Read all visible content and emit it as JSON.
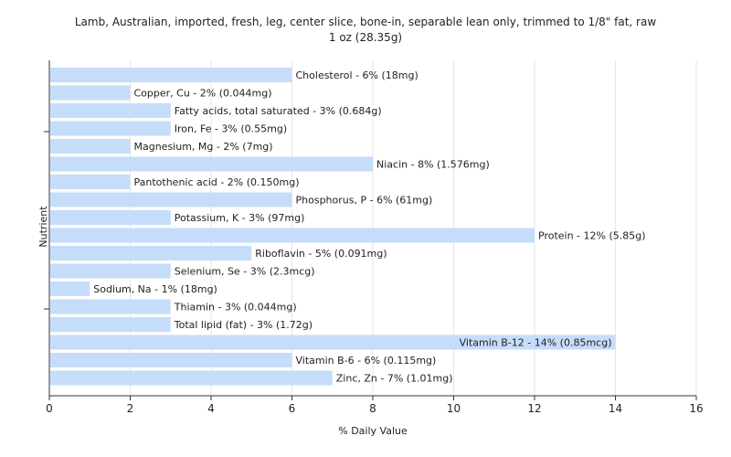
{
  "title_line_1": "Lamb, Australian, imported, fresh, leg, center slice, bone-in, separable lean only, trimmed to 1/8\" fat, raw",
  "title_line_2": "1 oz (28.35g)",
  "chart_data": {
    "type": "bar",
    "orientation": "horizontal",
    "title": "Lamb, Australian, imported, fresh, leg, center slice, bone-in, separable lean only, trimmed to 1/8\" fat, raw",
    "subtitle": "1 oz (28.35g)",
    "xlabel": "% Daily Value",
    "ylabel": "Nutrient",
    "xlim": [
      0,
      16
    ],
    "xticks": [
      0,
      2,
      4,
      6,
      8,
      10,
      12,
      14,
      16
    ],
    "grid": true,
    "bar_color": "#c6dcfb",
    "categories": [
      "Cholesterol",
      "Copper, Cu",
      "Fatty acids, total saturated",
      "Iron, Fe",
      "Magnesium, Mg",
      "Niacin",
      "Pantothenic acid",
      "Phosphorus, P",
      "Potassium, K",
      "Protein",
      "Riboflavin",
      "Selenium, Se",
      "Sodium, Na",
      "Thiamin",
      "Total lipid (fat)",
      "Vitamin B-12",
      "Vitamin B-6",
      "Zinc, Zn"
    ],
    "values": [
      6,
      2,
      3,
      3,
      2,
      8,
      2,
      6,
      3,
      12,
      5,
      3,
      1,
      3,
      3,
      14,
      6,
      7
    ],
    "labels": [
      "Cholesterol - 6% (18mg)",
      "Copper, Cu - 2% (0.044mg)",
      "Fatty acids, total saturated - 3% (0.684g)",
      "Iron, Fe - 3% (0.55mg)",
      "Magnesium, Mg - 2% (7mg)",
      "Niacin - 8% (1.576mg)",
      "Pantothenic acid - 2% (0.150mg)",
      "Phosphorus, P - 6% (61mg)",
      "Potassium, K - 3% (97mg)",
      "Protein - 12% (5.85g)",
      "Riboflavin - 5% (0.091mg)",
      "Selenium, Se - 3% (2.3mcg)",
      "Sodium, Na - 1% (18mg)",
      "Thiamin - 3% (0.044mg)",
      "Total lipid (fat) - 3% (1.72g)",
      "Vitamin B-12 - 14% (0.85mcg)",
      "Vitamin B-6 - 6% (0.115mg)",
      "Zinc, Zn - 7% (1.01mg)"
    ]
  }
}
